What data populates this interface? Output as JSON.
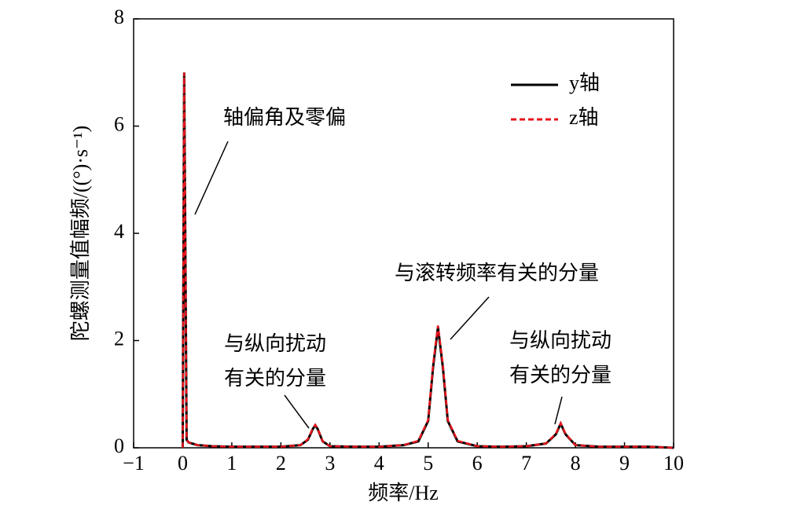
{
  "chart_data": {
    "type": "line",
    "xlabel": "频率/Hz",
    "ylabel": "陀螺测量值幅频/((°)·s⁻¹)",
    "x": [
      0,
      0.03,
      0.08,
      0.12,
      0.3,
      0.6,
      1.0,
      1.5,
      2.0,
      2.4,
      2.55,
      2.65,
      2.7,
      2.75,
      2.85,
      3.0,
      3.5,
      4.0,
      4.5,
      4.8,
      5.0,
      5.1,
      5.2,
      5.3,
      5.4,
      5.6,
      6.0,
      6.5,
      7.0,
      7.4,
      7.6,
      7.7,
      7.8,
      8.0,
      8.5,
      9.0,
      9.5,
      10.0
    ],
    "series": [
      {
        "name": "y轴",
        "color": "#000000",
        "dash": false,
        "values": [
          0,
          7.0,
          0.15,
          0.1,
          0.05,
          0.03,
          0.02,
          0.02,
          0.02,
          0.05,
          0.15,
          0.35,
          0.42,
          0.35,
          0.12,
          0.03,
          0.02,
          0.02,
          0.05,
          0.12,
          0.5,
          1.5,
          2.25,
          1.5,
          0.5,
          0.12,
          0.03,
          0.02,
          0.03,
          0.08,
          0.25,
          0.45,
          0.25,
          0.05,
          0.02,
          0.02,
          0.02,
          0
        ]
      },
      {
        "name": "z轴",
        "color": "#e8141c",
        "dash": true,
        "values": [
          0,
          7.0,
          0.16,
          0.1,
          0.05,
          0.03,
          0.02,
          0.02,
          0.02,
          0.05,
          0.16,
          0.36,
          0.43,
          0.36,
          0.12,
          0.03,
          0.02,
          0.02,
          0.05,
          0.13,
          0.52,
          1.55,
          2.28,
          1.55,
          0.52,
          0.13,
          0.03,
          0.02,
          0.03,
          0.08,
          0.26,
          0.46,
          0.26,
          0.05,
          0.02,
          0.02,
          0.02,
          0
        ]
      }
    ],
    "xlim": [
      -1,
      10
    ],
    "xticks": [
      {
        "value": -1,
        "label": "−1"
      },
      0,
      1,
      2,
      3,
      4,
      5,
      6,
      7,
      8,
      9,
      10
    ],
    "ylim": [
      0,
      8
    ],
    "yticks": [
      0,
      2,
      4,
      6,
      8
    ],
    "legend": "upper right",
    "annotations": [
      {
        "text": [
          "轴偏角及零偏"
        ]
      },
      {
        "text": [
          "与纵向扰动",
          "有关的分量"
        ]
      },
      {
        "text": [
          "与滚转频率有关的分量"
        ]
      },
      {
        "text": [
          "与纵向扰动",
          "有关的分量"
        ]
      }
    ]
  }
}
